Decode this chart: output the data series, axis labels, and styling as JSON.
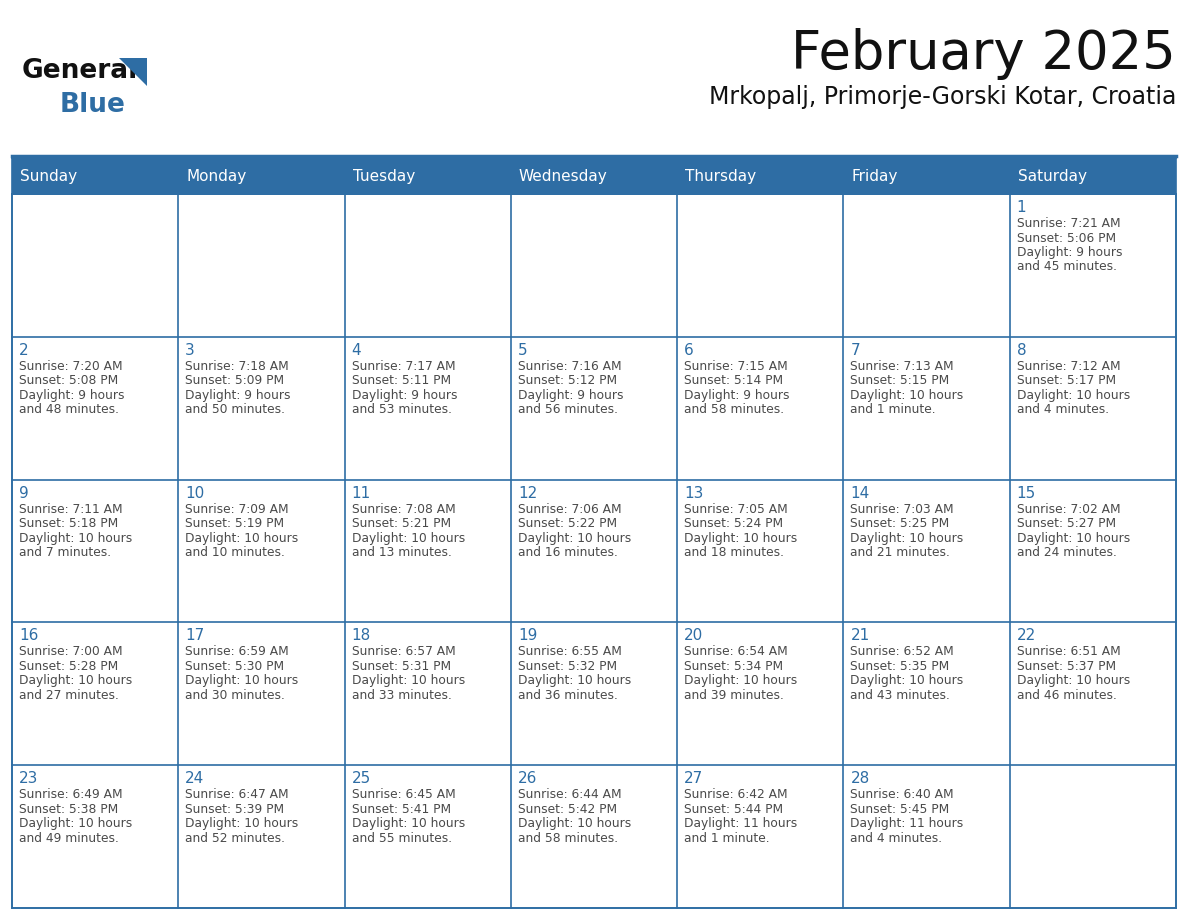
{
  "title": "February 2025",
  "subtitle": "Mrkopalj, Primorje-Gorski Kotar, Croatia",
  "days_of_week": [
    "Sunday",
    "Monday",
    "Tuesday",
    "Wednesday",
    "Thursday",
    "Friday",
    "Saturday"
  ],
  "header_bg": "#2E6DA4",
  "header_text": "#FFFFFF",
  "border_color": "#2E6DA4",
  "day_num_color": "#2E6DA4",
  "text_color": "#4a4a4a",
  "cell_bg": "#FFFFFF",
  "calendar": [
    [
      null,
      null,
      null,
      null,
      null,
      null,
      1
    ],
    [
      2,
      3,
      4,
      5,
      6,
      7,
      8
    ],
    [
      9,
      10,
      11,
      12,
      13,
      14,
      15
    ],
    [
      16,
      17,
      18,
      19,
      20,
      21,
      22
    ],
    [
      23,
      24,
      25,
      26,
      27,
      28,
      null
    ]
  ],
  "sun_set_data": {
    "1": {
      "sunrise": "7:21 AM",
      "sunset": "5:06 PM",
      "daylight": "9 hours",
      "daylight2": "and 45 minutes."
    },
    "2": {
      "sunrise": "7:20 AM",
      "sunset": "5:08 PM",
      "daylight": "9 hours",
      "daylight2": "and 48 minutes."
    },
    "3": {
      "sunrise": "7:18 AM",
      "sunset": "5:09 PM",
      "daylight": "9 hours",
      "daylight2": "and 50 minutes."
    },
    "4": {
      "sunrise": "7:17 AM",
      "sunset": "5:11 PM",
      "daylight": "9 hours",
      "daylight2": "and 53 minutes."
    },
    "5": {
      "sunrise": "7:16 AM",
      "sunset": "5:12 PM",
      "daylight": "9 hours",
      "daylight2": "and 56 minutes."
    },
    "6": {
      "sunrise": "7:15 AM",
      "sunset": "5:14 PM",
      "daylight": "9 hours",
      "daylight2": "and 58 minutes."
    },
    "7": {
      "sunrise": "7:13 AM",
      "sunset": "5:15 PM",
      "daylight": "10 hours",
      "daylight2": "and 1 minute."
    },
    "8": {
      "sunrise": "7:12 AM",
      "sunset": "5:17 PM",
      "daylight": "10 hours",
      "daylight2": "and 4 minutes."
    },
    "9": {
      "sunrise": "7:11 AM",
      "sunset": "5:18 PM",
      "daylight": "10 hours",
      "daylight2": "and 7 minutes."
    },
    "10": {
      "sunrise": "7:09 AM",
      "sunset": "5:19 PM",
      "daylight": "10 hours",
      "daylight2": "and 10 minutes."
    },
    "11": {
      "sunrise": "7:08 AM",
      "sunset": "5:21 PM",
      "daylight": "10 hours",
      "daylight2": "and 13 minutes."
    },
    "12": {
      "sunrise": "7:06 AM",
      "sunset": "5:22 PM",
      "daylight": "10 hours",
      "daylight2": "and 16 minutes."
    },
    "13": {
      "sunrise": "7:05 AM",
      "sunset": "5:24 PM",
      "daylight": "10 hours",
      "daylight2": "and 18 minutes."
    },
    "14": {
      "sunrise": "7:03 AM",
      "sunset": "5:25 PM",
      "daylight": "10 hours",
      "daylight2": "and 21 minutes."
    },
    "15": {
      "sunrise": "7:02 AM",
      "sunset": "5:27 PM",
      "daylight": "10 hours",
      "daylight2": "and 24 minutes."
    },
    "16": {
      "sunrise": "7:00 AM",
      "sunset": "5:28 PM",
      "daylight": "10 hours",
      "daylight2": "and 27 minutes."
    },
    "17": {
      "sunrise": "6:59 AM",
      "sunset": "5:30 PM",
      "daylight": "10 hours",
      "daylight2": "and 30 minutes."
    },
    "18": {
      "sunrise": "6:57 AM",
      "sunset": "5:31 PM",
      "daylight": "10 hours",
      "daylight2": "and 33 minutes."
    },
    "19": {
      "sunrise": "6:55 AM",
      "sunset": "5:32 PM",
      "daylight": "10 hours",
      "daylight2": "and 36 minutes."
    },
    "20": {
      "sunrise": "6:54 AM",
      "sunset": "5:34 PM",
      "daylight": "10 hours",
      "daylight2": "and 39 minutes."
    },
    "21": {
      "sunrise": "6:52 AM",
      "sunset": "5:35 PM",
      "daylight": "10 hours",
      "daylight2": "and 43 minutes."
    },
    "22": {
      "sunrise": "6:51 AM",
      "sunset": "5:37 PM",
      "daylight": "10 hours",
      "daylight2": "and 46 minutes."
    },
    "23": {
      "sunrise": "6:49 AM",
      "sunset": "5:38 PM",
      "daylight": "10 hours",
      "daylight2": "and 49 minutes."
    },
    "24": {
      "sunrise": "6:47 AM",
      "sunset": "5:39 PM",
      "daylight": "10 hours",
      "daylight2": "and 52 minutes."
    },
    "25": {
      "sunrise": "6:45 AM",
      "sunset": "5:41 PM",
      "daylight": "10 hours",
      "daylight2": "and 55 minutes."
    },
    "26": {
      "sunrise": "6:44 AM",
      "sunset": "5:42 PM",
      "daylight": "10 hours",
      "daylight2": "and 58 minutes."
    },
    "27": {
      "sunrise": "6:42 AM",
      "sunset": "5:44 PM",
      "daylight": "11 hours",
      "daylight2": "and 1 minute."
    },
    "28": {
      "sunrise": "6:40 AM",
      "sunset": "5:45 PM",
      "daylight": "11 hours",
      "daylight2": "and 4 minutes."
    }
  },
  "fig_width": 11.88,
  "fig_height": 9.18,
  "dpi": 100
}
